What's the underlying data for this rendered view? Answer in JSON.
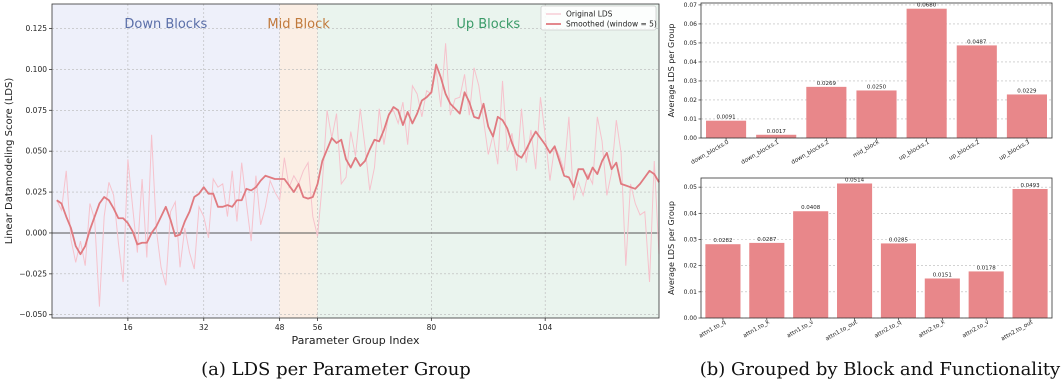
{
  "captions": {
    "a": "(a) LDS per Parameter Group",
    "b": "(b) Grouped by Block and Functionality"
  },
  "colors": {
    "bar": "#e8878a",
    "smooth": "#e07a80",
    "original": "#f6c2cc",
    "region_down": "#eef0fa",
    "region_mid": "#fbeee4",
    "region_up": "#eaf4ee",
    "text_down": "#5b6fa8",
    "text_mid": "#c17a3c",
    "text_up": "#3a9a68"
  },
  "chart_data": [
    {
      "type": "line",
      "xlabel": "Parameter Group Index",
      "ylabel": "Linear Datamodeling Score (LDS)",
      "xlim": [
        0,
        128
      ],
      "ylim": [
        -0.052,
        0.14
      ],
      "xticks": [
        16,
        32,
        48,
        56,
        80,
        104
      ],
      "yticks": [
        -0.05,
        -0.025,
        0.0,
        0.025,
        0.05,
        0.075,
        0.1,
        0.125
      ],
      "ytick_labels": [
        "−0.050",
        "−0.025",
        "0.000",
        "0.025",
        "0.050",
        "0.075",
        "0.100",
        "0.125"
      ],
      "grid": true,
      "zero_line": true,
      "legend": {
        "position": "top-right",
        "entries": [
          "Original LDS",
          "Smoothed (window = 5)"
        ]
      },
      "regions": [
        {
          "label": "Down Blocks",
          "start": 0,
          "end": 48,
          "label_x": 24
        },
        {
          "label": "Mid Block",
          "start": 48,
          "end": 56,
          "label_x": 52
        },
        {
          "label": "Up Blocks",
          "start": 56,
          "end": 128,
          "label_x": 92
        }
      ],
      "series": [
        {
          "name": "Smoothed (window = 5)",
          "x_start": 1,
          "values": [
            0.02,
            0.018,
            0.01,
            0.003,
            -0.008,
            -0.013,
            -0.008,
            0.002,
            0.01,
            0.018,
            0.022,
            0.02,
            0.015,
            0.009,
            0.009,
            0.006,
            0.001,
            -0.007,
            -0.006,
            -0.006,
            0.0,
            0.004,
            0.01,
            0.016,
            0.008,
            -0.002,
            -0.001,
            0.007,
            0.013,
            0.022,
            0.024,
            0.028,
            0.024,
            0.024,
            0.016,
            0.016,
            0.017,
            0.016,
            0.02,
            0.02,
            0.027,
            0.026,
            0.028,
            0.032,
            0.035,
            0.034,
            0.033,
            0.033,
            0.033,
            0.029,
            0.025,
            0.03,
            0.022,
            0.021,
            0.022,
            0.03,
            0.044,
            0.051,
            0.058,
            0.055,
            0.057,
            0.045,
            0.04,
            0.046,
            0.041,
            0.044,
            0.051,
            0.057,
            0.056,
            0.063,
            0.072,
            0.077,
            0.075,
            0.066,
            0.074,
            0.067,
            0.073,
            0.081,
            0.083,
            0.086,
            0.103,
            0.095,
            0.085,
            0.079,
            0.076,
            0.073,
            0.086,
            0.08,
            0.071,
            0.07,
            0.079,
            0.065,
            0.059,
            0.071,
            0.069,
            0.064,
            0.055,
            0.048,
            0.046,
            0.051,
            0.057,
            0.062,
            0.058,
            0.054,
            0.049,
            0.053,
            0.044,
            0.035,
            0.034,
            0.028,
            0.039,
            0.039,
            0.033,
            0.04,
            0.036,
            0.044,
            0.049,
            0.039,
            0.043,
            0.03,
            0.029,
            0.028,
            0.027,
            0.03,
            0.034,
            0.038,
            0.036,
            0.031
          ]
        },
        {
          "name": "Original LDS",
          "x_start": 1,
          "values": [
            0.02,
            0.014,
            0.038,
            -0.004,
            -0.018,
            -0.005,
            -0.02,
            0.018,
            0.008,
            -0.045,
            0.01,
            0.031,
            0.023,
            -0.006,
            -0.03,
            0.045,
            0.016,
            -0.012,
            0.033,
            -0.015,
            0.06,
            0.002,
            -0.021,
            -0.032,
            0.013,
            0.019,
            -0.021,
            0.003,
            -0.012,
            -0.022,
            0.016,
            0.01,
            -0.003,
            0.033,
            0.028,
            0.03,
            0.01,
            0.038,
            0.007,
            0.043,
            0.018,
            -0.005,
            0.035,
            0.005,
            0.016,
            0.032,
            0.025,
            0.02,
            0.046,
            0.028,
            0.035,
            0.03,
            0.038,
            0.043,
            0.01,
            -0.002,
            0.03,
            0.075,
            0.058,
            0.073,
            0.03,
            0.034,
            0.062,
            0.047,
            0.076,
            0.053,
            0.026,
            0.04,
            0.076,
            0.054,
            0.073,
            0.075,
            0.067,
            0.08,
            0.054,
            0.09,
            0.085,
            0.071,
            0.087,
            0.085,
            0.1,
            0.077,
            0.116,
            0.072,
            0.082,
            0.083,
            0.097,
            0.072,
            0.101,
            0.09,
            0.069,
            0.048,
            0.06,
            0.042,
            0.093,
            0.05,
            0.061,
            0.038,
            0.076,
            0.043,
            0.063,
            0.039,
            0.083,
            0.06,
            0.032,
            0.053,
            0.047,
            0.038,
            0.071,
            0.02,
            0.031,
            0.023,
            0.036,
            0.03,
            0.071,
            0.056,
            0.023,
            0.037,
            0.069,
            0.049,
            -0.02,
            0.03,
            0.018,
            0.011,
            0.013,
            -0.03,
            0.044,
            -0.013
          ]
        }
      ]
    },
    {
      "type": "bar",
      "ylabel": "Average LDS per Group",
      "ylim": [
        0,
        0.071
      ],
      "yticks": [
        0.0,
        0.01,
        0.02,
        0.03,
        0.04,
        0.05,
        0.06,
        0.07
      ],
      "ytick_labels": [
        "0.00",
        "0.01",
        "0.02",
        "0.03",
        "0.04",
        "0.05",
        "0.06",
        "0.07"
      ],
      "grid": true,
      "categories": [
        "down_blocks.0",
        "down_blocks.1",
        "down_blocks.2",
        "mid_block",
        "up_blocks.1",
        "up_blocks.2",
        "up_blocks.3"
      ],
      "values": [
        0.0091,
        0.0017,
        0.0269,
        0.025,
        0.068,
        0.0487,
        0.0229
      ],
      "value_labels": [
        "0.0091",
        "0.0017",
        "0.0269",
        "0.0250",
        "0.0680",
        "0.0487",
        "0.0229"
      ]
    },
    {
      "type": "bar",
      "ylabel": "Average LDS per Group",
      "ylim": [
        0,
        0.0535
      ],
      "yticks": [
        0.0,
        0.01,
        0.02,
        0.03,
        0.04,
        0.05
      ],
      "ytick_labels": [
        "0.00",
        "0.01",
        "0.02",
        "0.03",
        "0.04",
        "0.05"
      ],
      "grid": true,
      "categories": [
        "attn1.to_q",
        "attn1.to_k",
        "attn1.to_v",
        "attn1.to_out",
        "attn2.to_q",
        "attn2.to_k",
        "attn2.to_v",
        "attn2.to_out"
      ],
      "values": [
        0.0282,
        0.0287,
        0.0408,
        0.0514,
        0.0285,
        0.0151,
        0.0178,
        0.0493
      ],
      "value_labels": [
        "0.0282",
        "0.0287",
        "0.0408",
        "0.0514",
        "0.0285",
        "0.0151",
        "0.0178",
        "0.0493"
      ]
    }
  ]
}
